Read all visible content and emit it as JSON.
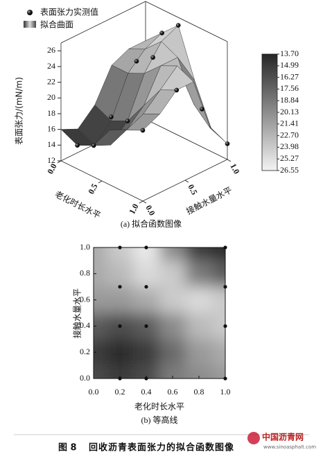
{
  "figure_label": "图 8",
  "figure_title": "回收沥青表面张力的拟合函数图像",
  "watermark": {
    "name": "中国沥青网",
    "url": "www.sinoasphalt.com"
  },
  "chart_data": [
    {
      "type": "surface3d",
      "subtitle": "(a) 拟合函数图像",
      "x_label": "老化时长水平",
      "y_label": "接触水量水平",
      "z_label": "表面张力/(mN/m)",
      "xlim": [
        0,
        1
      ],
      "xticks": [
        {
          "value": 0,
          "label": "0.0"
        },
        {
          "value": 0.5,
          "label": "0.5"
        },
        {
          "value": 1,
          "label": "1.0"
        }
      ],
      "ylim": [
        0,
        1
      ],
      "yticks": [
        {
          "value": 0,
          "label": "0.0"
        },
        {
          "value": 0.5,
          "label": "0.5"
        },
        {
          "value": 1,
          "label": "1.0"
        }
      ],
      "zlim": [
        12,
        27
      ],
      "zticks": [
        12,
        14,
        16,
        18,
        20,
        22,
        24,
        26
      ],
      "surface": {
        "name": "拟合曲面",
        "x": [
          0,
          0.2,
          0.4,
          0.6,
          0.8,
          1
        ],
        "y": [
          0,
          0.2,
          0.4,
          0.6,
          0.8,
          1
        ],
        "z": [
          [
            16,
            15,
            16,
            19,
            20,
            21
          ],
          [
            15,
            14,
            15,
            18,
            21,
            22
          ],
          [
            17,
            16,
            17,
            20,
            23,
            24
          ],
          [
            21,
            21,
            22,
            24,
            25,
            24
          ],
          [
            22,
            23,
            25,
            24,
            19,
            17
          ],
          [
            22,
            24,
            26,
            20,
            15,
            14
          ]
        ]
      },
      "points": {
        "name": "表面张力实测值",
        "color": "#111111",
        "x": [
          0.2,
          0.4,
          1,
          0.2,
          0.4,
          1,
          0.2,
          0.4,
          1,
          0.2,
          0.4,
          1
        ],
        "y": [
          0,
          0,
          0,
          0.4,
          0.4,
          0.4,
          0.7,
          0.7,
          0.7,
          1,
          1,
          1
        ],
        "values": [
          15,
          16,
          21,
          16.5,
          17,
          24,
          22,
          23.5,
          20,
          24,
          26,
          14
        ]
      },
      "colorbar": {
        "clim": [
          13.7,
          26.55
        ],
        "ticks": [
          {
            "value": 13.7,
            "label": "13.70"
          },
          14.99,
          16.27,
          17.56,
          18.84,
          20.13,
          21.41,
          {
            "value": 22.7,
            "label": "22.70"
          },
          23.98,
          25.27,
          26.55
        ]
      }
    },
    {
      "type": "contour",
      "subtitle": "(b) 等高线",
      "x_label": "老化时长水平",
      "y_label": "接触水量水平",
      "xlim": [
        0,
        1
      ],
      "xticks": [
        {
          "value": 0,
          "label": "0.0"
        },
        {
          "value": 0.2,
          "label": "0.2"
        },
        {
          "value": 0.4,
          "label": "0.4"
        },
        {
          "value": 0.6,
          "label": "0.6"
        },
        {
          "value": 0.8,
          "label": "0.8"
        },
        {
          "value": 1,
          "label": "1.0"
        }
      ],
      "ylim": [
        0,
        1
      ],
      "yticks": [
        {
          "value": 0,
          "label": "0.0"
        },
        {
          "value": 0.2,
          "label": "0.2"
        },
        {
          "value": 0.4,
          "label": "0.4"
        },
        {
          "value": 0.6,
          "label": "0.6"
        },
        {
          "value": 0.8,
          "label": "0.8"
        },
        {
          "value": 1,
          "label": "1.0"
        }
      ],
      "clim": [
        13.7,
        26.55
      ],
      "grid": {
        "x": [
          0,
          0.2,
          0.4,
          0.6,
          0.8,
          1
        ],
        "y": [
          0,
          0.2,
          0.4,
          0.6,
          0.8,
          1
        ],
        "z": [
          [
            16,
            15,
            16,
            19,
            20,
            21
          ],
          [
            15,
            14,
            15,
            18,
            21,
            22
          ],
          [
            17,
            16,
            17,
            20,
            23,
            24
          ],
          [
            21,
            21,
            22,
            24,
            25,
            24
          ],
          [
            22,
            23,
            25,
            24,
            19,
            17
          ],
          [
            22,
            24,
            26,
            20,
            15,
            14
          ]
        ]
      },
      "points": {
        "color": "#111111",
        "x": [
          0.2,
          0.4,
          1,
          0.2,
          0.4,
          1,
          0.2,
          0.4,
          1,
          0.2,
          0.4,
          1
        ],
        "y": [
          0,
          0,
          0,
          0.4,
          0.4,
          0.4,
          0.7,
          0.7,
          0.7,
          1,
          1,
          1
        ]
      }
    }
  ]
}
